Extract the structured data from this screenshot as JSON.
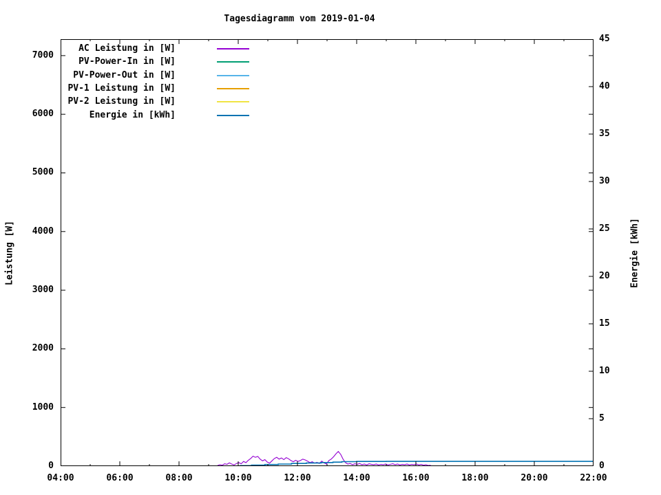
{
  "title": "Tagesdiagramm vom 2019-01-04",
  "colors": {
    "background": "#ffffff",
    "axis": "#000000",
    "ac_leistung": "#9400d3",
    "pv_power_in": "#009e73",
    "pv_power_out": "#56b4e9",
    "pv1_leistung": "#e69f00",
    "pv2_leistung": "#f0e442",
    "energie": "#0072b2"
  },
  "chart_data": {
    "type": "line",
    "title": "Tagesdiagramm vom 2019-01-04",
    "grid": false,
    "legend_position": "top-left-inside",
    "x_axis": {
      "unit": "time",
      "range_hours": [
        4,
        22
      ],
      "major_tick_hours": [
        4,
        6,
        8,
        10,
        12,
        14,
        16,
        18,
        20,
        22
      ],
      "major_tick_labels": [
        "04:00",
        "06:00",
        "08:00",
        "10:00",
        "12:00",
        "14:00",
        "16:00",
        "18:00",
        "20:00",
        "22:00"
      ],
      "minor_tick_hours": [
        5,
        7,
        9,
        11,
        13,
        15,
        17,
        19,
        21
      ]
    },
    "y1_axis": {
      "label": "Leistung [W]",
      "range": [
        0,
        7280
      ],
      "tick_values": [
        0,
        1000,
        2000,
        3000,
        4000,
        5000,
        6000,
        7000
      ]
    },
    "y2_axis": {
      "label": "Energie [kWh]",
      "range": [
        0,
        45
      ],
      "tick_values": [
        0,
        5,
        10,
        15,
        20,
        25,
        30,
        35,
        40,
        45
      ]
    },
    "series": [
      {
        "name": "AC Leistung in [W]",
        "color": "#9400d3",
        "axis": "y1",
        "mode": "line",
        "start_hour": 9.3,
        "step_hours": 0.08,
        "values": [
          10,
          25,
          15,
          40,
          30,
          55,
          35,
          20,
          45,
          60,
          40,
          80,
          60,
          100,
          130,
          170,
          150,
          165,
          120,
          90,
          110,
          70,
          50,
          90,
          130,
          150,
          120,
          140,
          110,
          145,
          125,
          95,
          75,
          100,
          80,
          95,
          120,
          105,
          85,
          60,
          75,
          50,
          65,
          45,
          85,
          55,
          35,
          95,
          120,
          160,
          210,
          250,
          200,
          120,
          60,
          35,
          45,
          25,
          40,
          30,
          45,
          25,
          35,
          20,
          40,
          30,
          25,
          35,
          20,
          30,
          25,
          35,
          20,
          30,
          40,
          25,
          35,
          20,
          30,
          25,
          35,
          20,
          30,
          25,
          35,
          20,
          30,
          15,
          25,
          10,
          15
        ]
      },
      {
        "name": "PV-Power-In in [W]",
        "color": "#009e73",
        "axis": "y1",
        "mode": "line",
        "values": []
      },
      {
        "name": "PV-Power-Out in [W]",
        "color": "#56b4e9",
        "axis": "y1",
        "mode": "line",
        "values": []
      },
      {
        "name": "PV-1 Leistung in [W]",
        "color": "#e69f00",
        "axis": "y1",
        "mode": "line",
        "values": []
      },
      {
        "name": "PV-2 Leistung in [W]",
        "color": "#f0e442",
        "axis": "y1",
        "mode": "line",
        "values": []
      },
      {
        "name": "Energie in [kWh]",
        "color": "#0072b2",
        "axis": "y2",
        "mode": "steps",
        "points": [
          [
            10.05,
            0.05
          ],
          [
            10.45,
            0.1
          ],
          [
            10.9,
            0.17
          ],
          [
            11.35,
            0.22
          ],
          [
            11.8,
            0.28
          ],
          [
            12.3,
            0.33
          ],
          [
            12.8,
            0.38
          ],
          [
            13.2,
            0.42
          ],
          [
            13.5,
            0.47
          ],
          [
            14.0,
            0.49
          ],
          [
            15.0,
            0.5
          ],
          [
            22.0,
            0.5
          ]
        ]
      }
    ]
  }
}
